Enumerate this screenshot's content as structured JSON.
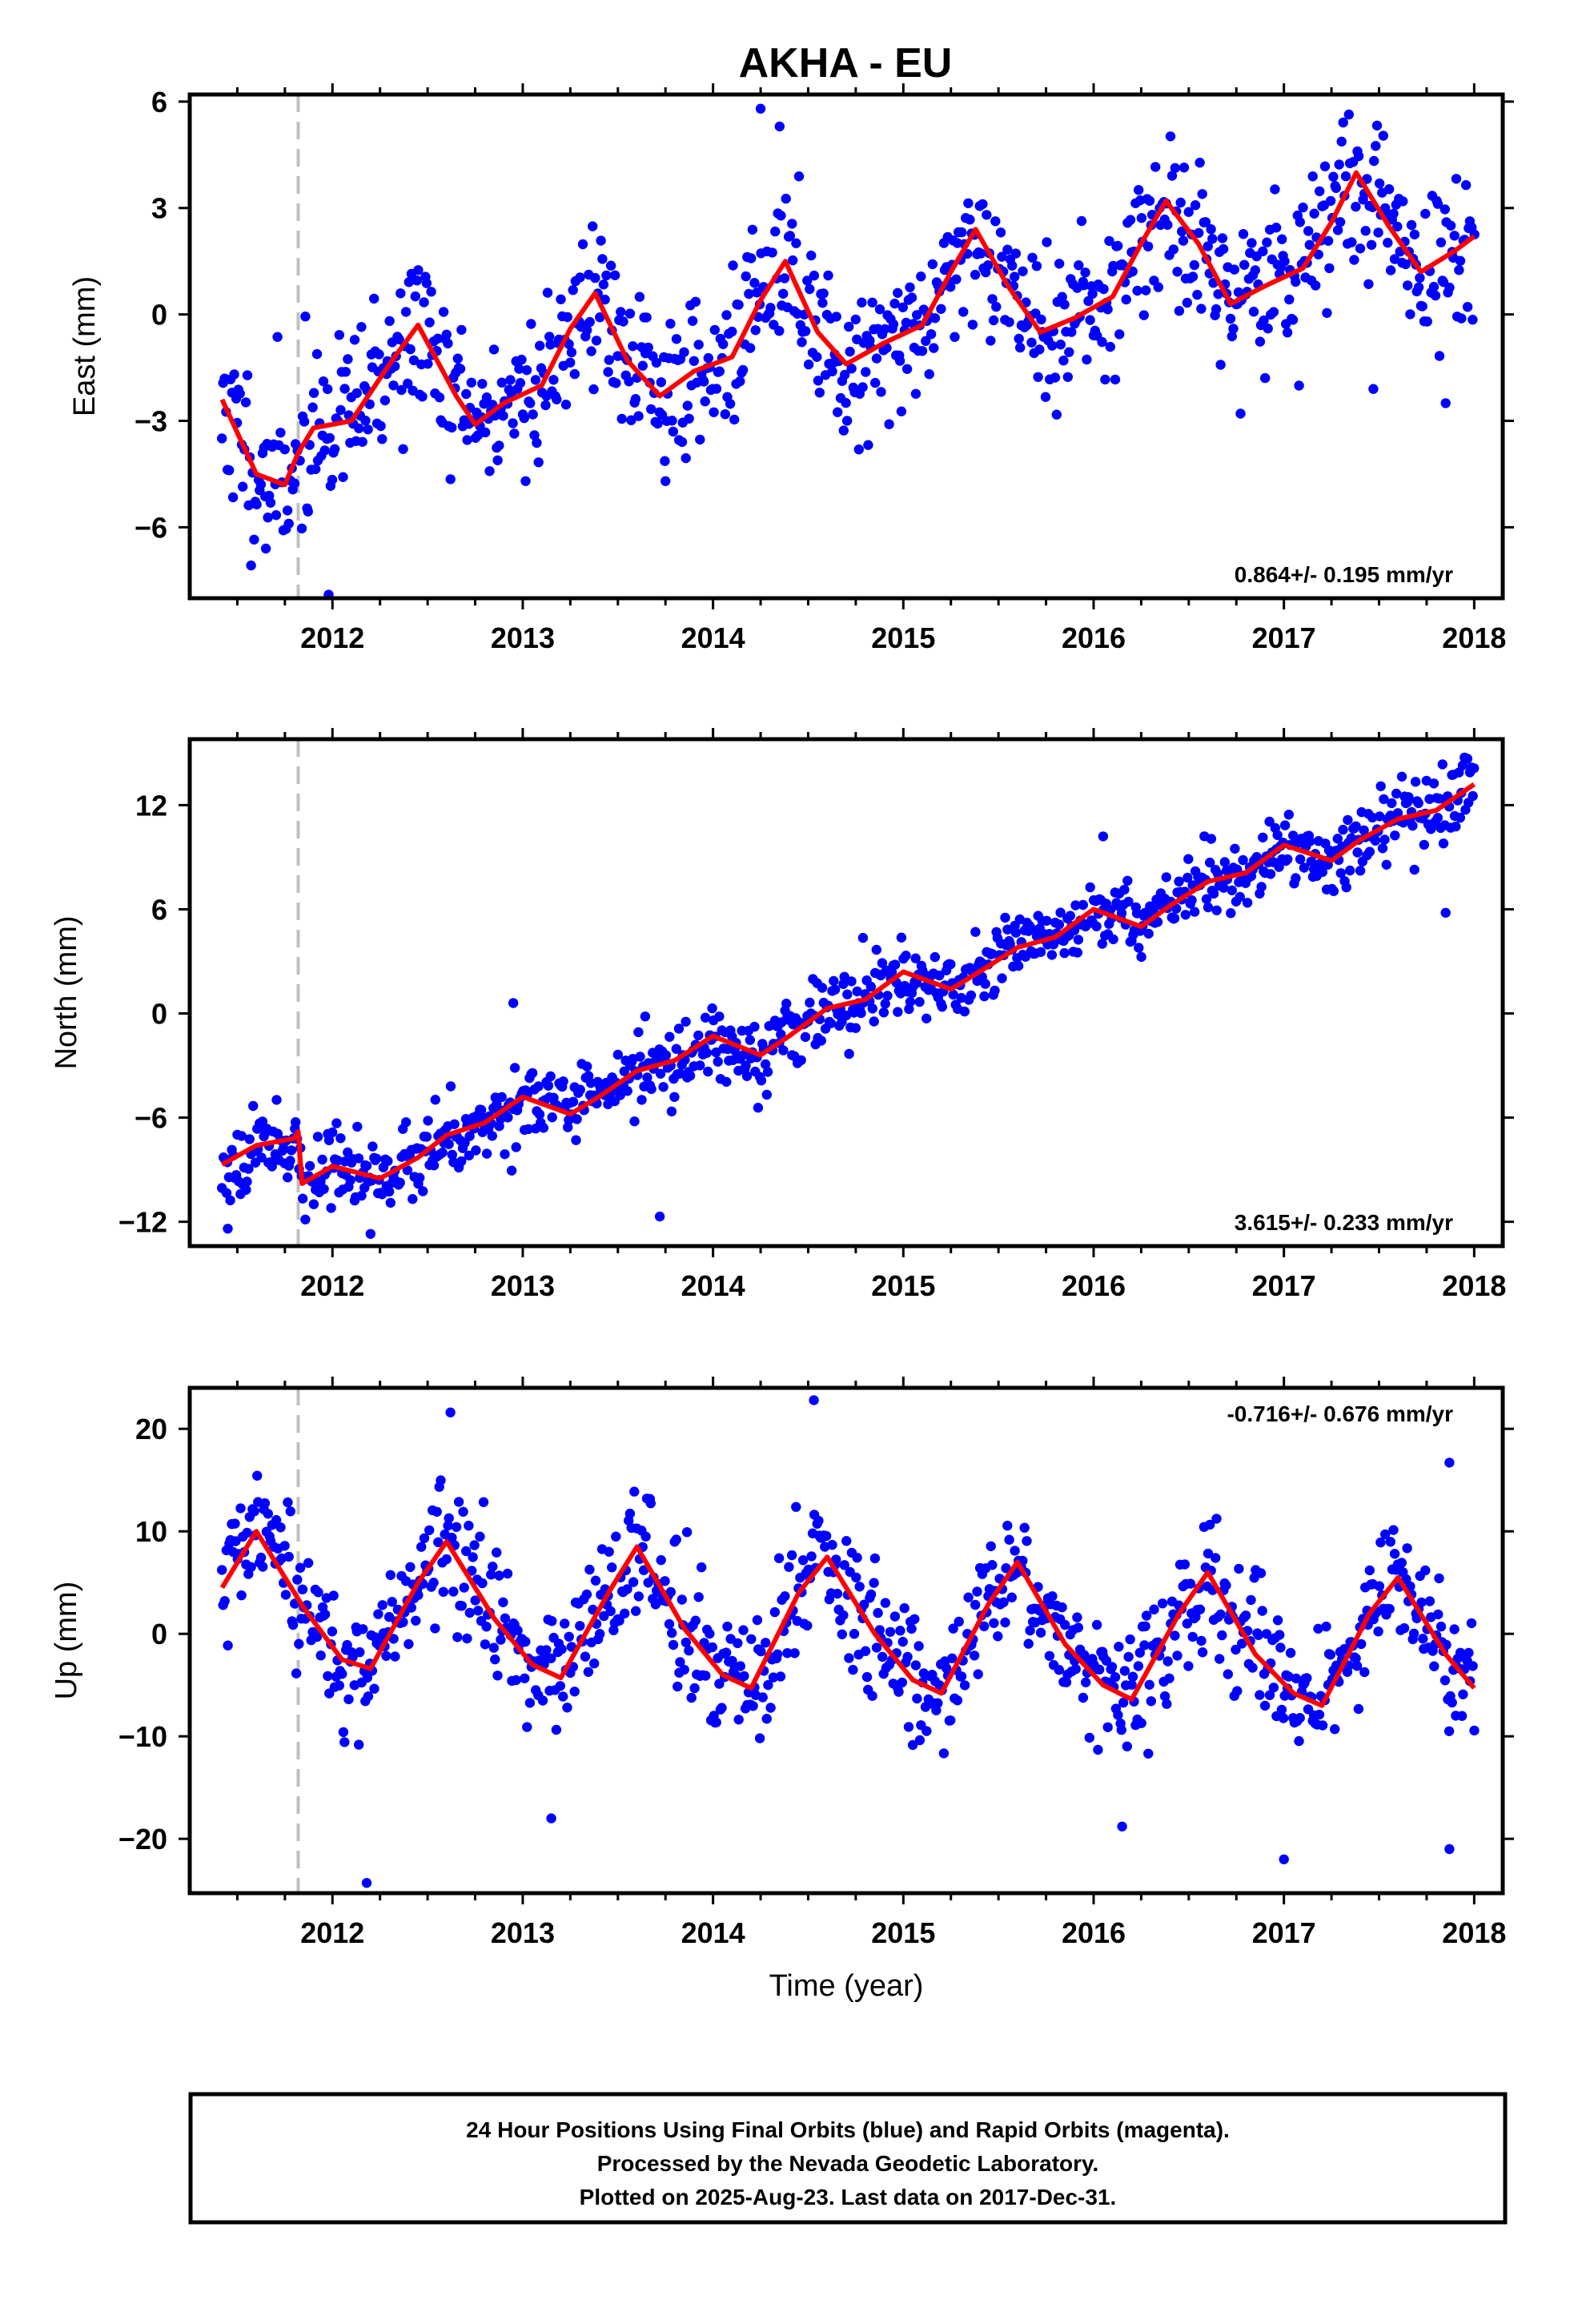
{
  "chart_data": [
    {
      "type": "scatter",
      "panel": "east",
      "title": "AKHA - EU",
      "ylabel": "East (mm)",
      "xlim": [
        2011.25,
        2018.15
      ],
      "ylim": [
        -8.0,
        6.2
      ],
      "yticks": [
        -6,
        -3,
        0,
        3,
        6
      ],
      "ytick_labels": [
        "−6",
        "−3",
        "0",
        "3",
        "6"
      ],
      "xticks": [
        2012,
        2013,
        2014,
        2015,
        2016,
        2017,
        2018
      ],
      "xtick_labels": [
        "2012",
        "2013",
        "2014",
        "2015",
        "2016",
        "2017",
        "2018"
      ],
      "rate_text": "0.864+/- 0.195 mm/yr",
      "rate_position": "bottom-right",
      "break_year": 2011.82,
      "point_color": "#0000ff",
      "line_color": "#ff0000",
      "model_line": {
        "x": [
          2011.42,
          2011.6,
          2011.75,
          2011.82,
          2011.9,
          2012.1,
          2012.3,
          2012.45,
          2012.65,
          2012.75,
          2012.9,
          2013.1,
          2013.25,
          2013.38,
          2013.55,
          2013.72,
          2013.9,
          2014.1,
          2014.25,
          2014.38,
          2014.55,
          2014.7,
          2014.9,
          2015.1,
          2015.25,
          2015.38,
          2015.55,
          2015.72,
          2015.9,
          2016.1,
          2016.25,
          2016.38,
          2016.55,
          2016.72,
          2016.9,
          2017.1,
          2017.25,
          2017.38,
          2017.55,
          2017.72,
          2017.9,
          2018.0
        ],
        "y": [
          -2.4,
          -4.5,
          -4.8,
          -3.9,
          -3.2,
          -3.0,
          -1.4,
          -0.3,
          -2.3,
          -3.1,
          -2.5,
          -2.0,
          -0.4,
          0.6,
          -1.3,
          -2.3,
          -1.6,
          -1.2,
          0.4,
          1.5,
          -0.5,
          -1.4,
          -0.8,
          -0.3,
          1.2,
          2.4,
          0.8,
          -0.5,
          -0.1,
          0.5,
          2.0,
          3.2,
          2.0,
          0.3,
          0.8,
          1.3,
          2.6,
          4.0,
          2.5,
          1.2,
          1.8,
          2.2
        ]
      },
      "scatter": {
        "n": 900,
        "noise": 1.15,
        "seed": 11,
        "outliers": [
          [
            2014.25,
            5.8
          ],
          [
            2014.35,
            5.3
          ],
          [
            2011.98,
            -7.9
          ],
          [
            2011.65,
            -6.6
          ],
          [
            2013.75,
            -4.7
          ],
          [
            2017.85,
            -2.5
          ],
          [
            2017.47,
            -2.1
          ]
        ]
      }
    },
    {
      "type": "scatter",
      "panel": "north",
      "ylabel": "North (mm)",
      "xlim": [
        2011.25,
        2018.15
      ],
      "ylim": [
        -13.4,
        15.8
      ],
      "yticks": [
        -12,
        -6,
        0,
        6,
        12
      ],
      "ytick_labels": [
        "−12",
        "−6",
        "0",
        "6",
        "12"
      ],
      "xticks": [
        2012,
        2013,
        2014,
        2015,
        2016,
        2017,
        2018
      ],
      "xtick_labels": [
        "2012",
        "2013",
        "2014",
        "2015",
        "2016",
        "2017",
        "2018"
      ],
      "rate_text": "3.615+/- 0.233 mm/yr",
      "rate_position": "bottom-right",
      "break_year": 2011.82,
      "point_color": "#0000ff",
      "line_color": "#ff0000",
      "model_line": {
        "x": [
          2011.42,
          2011.6,
          2011.8,
          2011.82,
          2011.84,
          2012.0,
          2012.25,
          2012.45,
          2012.6,
          2012.8,
          2013.0,
          2013.25,
          2013.4,
          2013.6,
          2013.8,
          2014.0,
          2014.25,
          2014.4,
          2014.6,
          2014.8,
          2015.0,
          2015.25,
          2015.4,
          2015.6,
          2015.8,
          2016.0,
          2016.25,
          2016.4,
          2016.6,
          2016.8,
          2017.0,
          2017.25,
          2017.4,
          2017.6,
          2017.8,
          2018.0
        ],
        "y": [
          -8.7,
          -7.6,
          -7.2,
          -6.8,
          -9.8,
          -8.8,
          -9.5,
          -8.3,
          -7.0,
          -6.3,
          -4.8,
          -5.8,
          -4.8,
          -3.3,
          -2.7,
          -1.3,
          -2.4,
          -1.3,
          0.3,
          0.8,
          2.4,
          1.4,
          2.4,
          3.8,
          4.4,
          6.0,
          5.0,
          6.2,
          7.6,
          8.1,
          9.7,
          8.8,
          10.0,
          11.2,
          11.7,
          13.2
        ]
      },
      "scatter": {
        "n": 900,
        "noise": 1.05,
        "seed": 23,
        "outliers": [
          [
            2012.95,
            0.6
          ],
          [
            2013.72,
            -11.7
          ],
          [
            2011.45,
            -12.4
          ],
          [
            2012.2,
            -12.7
          ],
          [
            2017.85,
            5.8
          ],
          [
            2016.05,
            10.2
          ]
        ]
      }
    },
    {
      "type": "scatter",
      "panel": "up",
      "ylabel": "Up (mm)",
      "xlabel": "Time (year)",
      "xlim": [
        2011.25,
        2018.15
      ],
      "ylim": [
        -25.3,
        24.0
      ],
      "yticks": [
        -20,
        -10,
        0,
        10,
        20
      ],
      "ytick_labels": [
        "−20",
        "−10",
        "0",
        "10",
        "20"
      ],
      "xticks": [
        2012,
        2013,
        2014,
        2015,
        2016,
        2017,
        2018
      ],
      "xtick_labels": [
        "2012",
        "2013",
        "2014",
        "2015",
        "2016",
        "2017",
        "2018"
      ],
      "rate_text": "-0.716+/- 0.676 mm/yr",
      "rate_position": "top-right",
      "break_year": 2011.82,
      "point_color": "#0000ff",
      "line_color": "#ff0000",
      "model_line": {
        "x": [
          2011.42,
          2011.6,
          2011.85,
          2012.05,
          2012.2,
          2012.45,
          2012.6,
          2012.85,
          2013.05,
          2013.2,
          2013.45,
          2013.6,
          2013.85,
          2014.05,
          2014.2,
          2014.45,
          2014.6,
          2014.85,
          2015.05,
          2015.2,
          2015.45,
          2015.6,
          2015.85,
          2016.05,
          2016.2,
          2016.45,
          2016.6,
          2016.85,
          2017.05,
          2017.2,
          2017.45,
          2017.6,
          2017.85,
          2018.0
        ],
        "y": [
          4.5,
          10.0,
          2.5,
          -2.5,
          -3.4,
          5.0,
          9.0,
          1.5,
          -3.0,
          -4.3,
          4.0,
          8.5,
          0.5,
          -4.0,
          -5.3,
          4.0,
          7.5,
          0.0,
          -4.5,
          -5.8,
          3.0,
          7.0,
          -1.0,
          -5.0,
          -6.4,
          2.0,
          6.0,
          -2.0,
          -5.8,
          -7.0,
          2.0,
          5.5,
          -2.0,
          -5.3
        ]
      },
      "scatter": {
        "n": 900,
        "noise": 3.2,
        "seed": 37,
        "outliers": [
          [
            2012.18,
            -24.3
          ],
          [
            2014.53,
            22.8
          ],
          [
            2012.62,
            21.6
          ],
          [
            2017.0,
            -22.0
          ],
          [
            2017.87,
            16.7
          ],
          [
            2017.87,
            -21.0
          ],
          [
            2016.15,
            -18.8
          ],
          [
            2013.15,
            -18.0
          ]
        ]
      }
    }
  ],
  "footer": {
    "line1": "24 Hour Positions Using Final Orbits (blue) and Rapid Orbits (magenta).",
    "line2": "Processed by the Nevada Geodetic Laboratory.",
    "line3": "Plotted on 2025-Aug-23. Last data on 2017-Dec-31."
  }
}
